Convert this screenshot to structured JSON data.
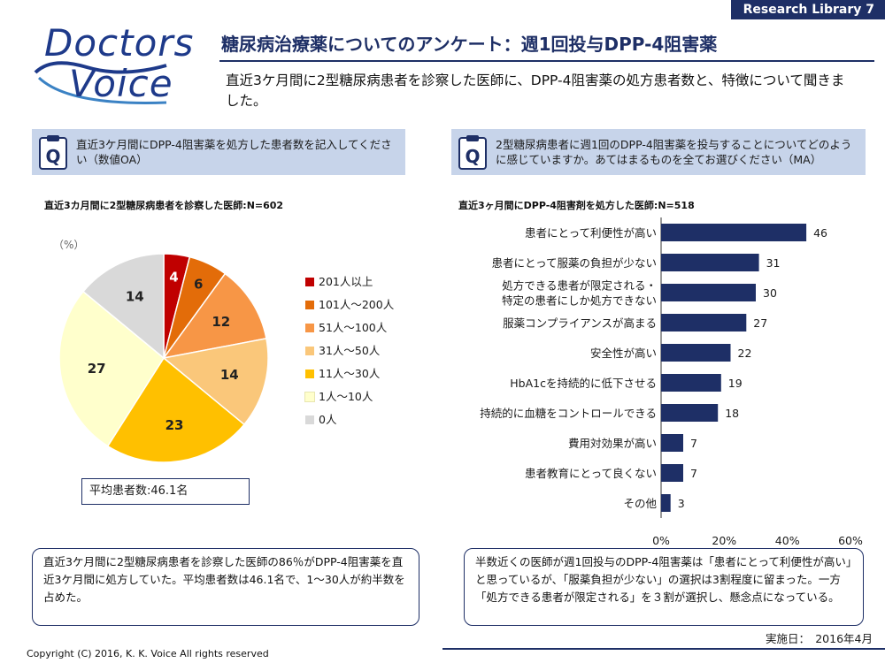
{
  "header": {
    "tag": "Research Library  7",
    "logo_line1": "Doctors",
    "logo_line2": "Voice",
    "title": "糖尿病治療薬についてのアンケート：週1回投与DPP-4阻害薬",
    "lead": "直近3ケ月間に2型糖尿病患者を診察した医師に、DPP-4阻害薬の処方患者数と、特徴について聞きました。"
  },
  "left": {
    "question": "直近3ケ月間にDPP-4阻害薬を処方した患者数を記入してください（数値OA）",
    "subhead": "直近3カ月間に2型糖尿病患者を診察した医師:N=602",
    "unit": "（%）",
    "average": "平均患者数:46.1名",
    "note": "直近3ケ月間に2型糖尿病患者を診察した医師の86％がDPP-4阻害薬を直近3ケ月間に処方していた。平均患者数は46.1名で、1〜30人が約半数を占めた。"
  },
  "right": {
    "question": "2型糖尿病患者に週1回のDPP-4阻害薬を投与することについてどのように感じていますか。あてはまるものを全てお選びください（MA）",
    "subhead": "直近3ヶ月間にDPP-4阻害剤を処方した医師:N=518",
    "note": "半数近くの医師が週1回投与のDPP-4阻害薬は「患者にとって利便性が高い」と思っているが、「服薬負担が少ない」の選択は3割程度に留まった。一方「処方できる患者が限定される」を３割が選択し、懸念点になっている。"
  },
  "footer": {
    "date": "実施日：　2016年4月",
    "copyright": "Copyright (C) 2016, K. K. Voice  All rights reserved"
  },
  "colors": {
    "navy": "#1e2f66",
    "question_bg": "#c7d4ea"
  },
  "chart_data": [
    {
      "type": "pie",
      "title": "",
      "unit": "（%）",
      "categories": [
        "201人以上",
        "101人～200人",
        "51人～100人",
        "31人～50人",
        "11人～30人",
        "1人～10人",
        "0人"
      ],
      "values": [
        4,
        6,
        12,
        14,
        23,
        27,
        14
      ],
      "colors": [
        "#c00000",
        "#e36c09",
        "#f79646",
        "#fac77a",
        "#ffc000",
        "#ffffcc",
        "#d9d9d9"
      ],
      "legend": "right"
    },
    {
      "type": "bar",
      "orientation": "horizontal",
      "title": "",
      "categories": [
        [
          "患者にとって利便性が高い"
        ],
        [
          "患者にとって服薬の負担が少ない"
        ],
        [
          "処方できる患者が限定される・",
          "特定の患者にしか処方できない"
        ],
        [
          "服薬コンプライアンスが高まる"
        ],
        [
          "安全性が高い"
        ],
        [
          "HbA1cを持続的に低下させる"
        ],
        [
          "持続的に血糖をコントロールできる"
        ],
        [
          "費用対効果が高い"
        ],
        [
          "患者教育にとって良くない"
        ],
        [
          "その他"
        ]
      ],
      "values": [
        46,
        31,
        30,
        27,
        22,
        19,
        18,
        7,
        7,
        3
      ],
      "xlim": [
        0,
        60
      ],
      "xticks": [
        "0%",
        "20%",
        "40%",
        "60%"
      ],
      "bar_color": "#1e2f66",
      "grid": false
    }
  ]
}
